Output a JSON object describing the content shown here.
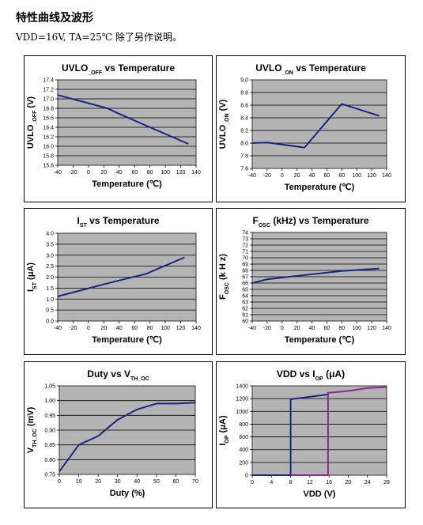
{
  "header": {
    "section_title": "特性曲线及波形",
    "conditions": "VDD=16V, TA=25℃ 除了另作说明。"
  },
  "colors": {
    "line": "#1a2580",
    "line2": "#8b2a8b",
    "plot_bg": "#b4b4b4",
    "frame": "#333333"
  },
  "chart_data": [
    {
      "type": "line",
      "title_main": "UVLO",
      "title_sub": "_OFF",
      "title_rest": " vs Temperature",
      "ylabel_main": "UVLO",
      "ylabel_sub": "_OFF",
      "ylabel_rest": " (V)",
      "xlabel": "Temperature  (℃)",
      "xlim": [
        -40,
        140
      ],
      "ylim": [
        15.6,
        17.4
      ],
      "xticks": [
        "-40",
        "-20",
        "0",
        "20",
        "40",
        "60",
        "80",
        "100",
        "120",
        "140"
      ],
      "yticks": [
        "15.6",
        "15.8",
        "16.0",
        "16.2",
        "16.4",
        "16.6",
        "16.8",
        "17.0",
        "17.2",
        "17.4"
      ],
      "series": [
        {
          "x": [
            -40,
            25,
            35,
            80,
            130
          ],
          "y": [
            17.08,
            16.8,
            16.72,
            16.4,
            16.05
          ]
        }
      ]
    },
    {
      "type": "line",
      "title_main": "UVLO",
      "title_sub": "_ON",
      "title_rest": " vs Temperature",
      "ylabel_main": "UVLO",
      "ylabel_sub": "_ON",
      "ylabel_rest": " (V)",
      "xlabel": "Temperature  (℃)",
      "xlim": [
        -40,
        140
      ],
      "ylim": [
        7.6,
        9.0
      ],
      "xticks": [
        "-40",
        "-20",
        "0",
        "20",
        "40",
        "60",
        "80",
        "100",
        "120",
        "140"
      ],
      "yticks": [
        "7.6",
        "7.8",
        "8.0",
        "8.2",
        "8.4",
        "8.6",
        "8.8",
        "9.0"
      ],
      "series": [
        {
          "x": [
            -40,
            -20,
            30,
            80,
            130
          ],
          "y": [
            8.0,
            8.01,
            7.93,
            8.62,
            8.43
          ]
        }
      ]
    },
    {
      "type": "line",
      "title_main": "I",
      "title_sub": "ST",
      "title_rest": " vs Temperature",
      "ylabel_main": "I",
      "ylabel_sub": "ST",
      "ylabel_rest": " (μA)",
      "xlabel": "Temperature   (℃)",
      "xlim": [
        -40,
        140
      ],
      "ylim": [
        0.0,
        4.0
      ],
      "xticks": [
        "-40",
        "-20",
        "0",
        "20",
        "40",
        "60",
        "80",
        "100",
        "120",
        "140"
      ],
      "yticks": [
        "0.0",
        "0.5",
        "1.0",
        "1.5",
        "2.0",
        "2.5",
        "3.0",
        "3.5",
        "4.0"
      ],
      "series": [
        {
          "x": [
            -40,
            25,
            75,
            125
          ],
          "y": [
            1.12,
            1.72,
            2.15,
            2.9
          ]
        }
      ]
    },
    {
      "type": "line",
      "title_main": "F",
      "title_sub": "OSC",
      "title_rest": " (kHz)   vs Temperature",
      "ylabel_main": "F",
      "ylabel_sub": "OSC",
      "ylabel_rest": " (k H z)",
      "xlabel": "Temperature (℃)",
      "xlim": [
        -40,
        140
      ],
      "ylim": [
        60,
        74
      ],
      "xticks": [
        "-40",
        "-20",
        "0",
        "20",
        "40",
        "60",
        "80",
        "100",
        "120",
        "140"
      ],
      "yticks": [
        "60",
        "61",
        "62",
        "63",
        "64",
        "65",
        "66",
        "67",
        "68",
        "69",
        "70",
        "71",
        "72",
        "73",
        "74"
      ],
      "series": [
        {
          "x": [
            -40,
            -20,
            25,
            80,
            130
          ],
          "y": [
            66.0,
            66.6,
            67.2,
            67.9,
            68.3
          ]
        }
      ]
    },
    {
      "type": "line",
      "title_main": "Duty   vs V",
      "title_sub": "TH_OC",
      "title_rest": "",
      "ylabel_main": "V",
      "ylabel_sub": "TH_OC",
      "ylabel_rest": " (mV)",
      "xlabel": "Duty      (%)",
      "xlim": [
        0,
        70
      ],
      "ylim": [
        0.75,
        1.05
      ],
      "xticks": [
        "0",
        "10",
        "20",
        "30",
        "40",
        "50",
        "60",
        "70"
      ],
      "yticks": [
        "0.75",
        "0.80",
        "0.85",
        "0.90",
        "0.95",
        "1.00",
        "1.05"
      ],
      "series": [
        {
          "x": [
            0,
            10,
            20,
            30,
            40,
            50,
            60,
            70
          ],
          "y": [
            0.76,
            0.85,
            0.88,
            0.935,
            0.97,
            0.99,
            0.99,
            0.993
          ]
        }
      ]
    },
    {
      "type": "line",
      "title_main": "VDD vs I",
      "title_sub": "OP",
      "title_rest": " (μA)",
      "ylabel_main": "I",
      "ylabel_sub": "OP",
      "ylabel_rest": " (μA)",
      "xlabel": "VDD (V)",
      "xlim": [
        0,
        28
      ],
      "ylim": [
        0,
        1400
      ],
      "xticks": [
        "0",
        "4",
        "8",
        "12",
        "16",
        "20",
        "24",
        "28"
      ],
      "yticks": [
        "0",
        "200",
        "400",
        "600",
        "800",
        "1000",
        "1200",
        "1400"
      ],
      "series": [
        {
          "x": [
            0,
            8,
            8,
            15.8
          ],
          "y": [
            0,
            0,
            1190,
            1265
          ]
        },
        {
          "x": [
            8,
            15.8,
            15.8,
            20,
            24,
            28
          ],
          "y": [
            0,
            0,
            1290,
            1320,
            1365,
            1380
          ]
        }
      ]
    }
  ]
}
